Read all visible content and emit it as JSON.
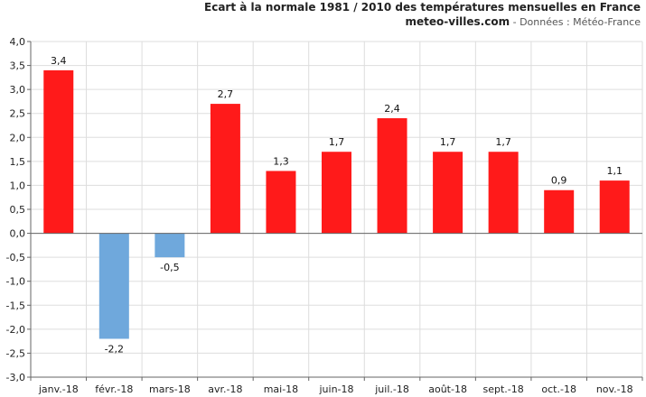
{
  "header": {
    "title": "Ecart à la normale 1981 / 2010 des températures mensuelles en France",
    "site": "meteo-villes.com",
    "source": " - Données : Météo-France"
  },
  "chart_data": {
    "type": "bar",
    "title": "Ecart à la normale 1981 / 2010 des températures mensuelles en France",
    "categories": [
      "janv.-18",
      "févr.-18",
      "mars-18",
      "avr.-18",
      "mai-18",
      "juin-18",
      "juil.-18",
      "août-18",
      "sept.-18",
      "oct.-18",
      "nov.-18"
    ],
    "values": [
      3.4,
      -2.2,
      -0.5,
      2.7,
      1.3,
      1.7,
      2.4,
      1.7,
      1.7,
      0.9,
      1.1
    ],
    "value_labels": [
      "3,4",
      "-2,2",
      "-0,5",
      "2,7",
      "1,3",
      "1,7",
      "2,4",
      "1,7",
      "1,7",
      "0,9",
      "1,1"
    ],
    "ylim": [
      -3.0,
      4.0
    ],
    "yticks": [
      -3.0,
      -2.5,
      -2.0,
      -1.5,
      -1.0,
      -0.5,
      0.0,
      0.5,
      1.0,
      1.5,
      2.0,
      2.5,
      3.0,
      3.5,
      4.0
    ],
    "ytick_labels": [
      "-3,0",
      "-2,5",
      "-2,0",
      "-1,5",
      "-1,0",
      "-0,5",
      "0,0",
      "0,5",
      "1,0",
      "1,5",
      "2,0",
      "2,5",
      "3,0",
      "3,5",
      "4,0"
    ],
    "xlabel": "",
    "ylabel": "",
    "grid": true,
    "colors": {
      "positive": "#ff1a1a",
      "negative": "#6fa8dc",
      "grid": "#dddddd",
      "axis": "#666666"
    }
  }
}
